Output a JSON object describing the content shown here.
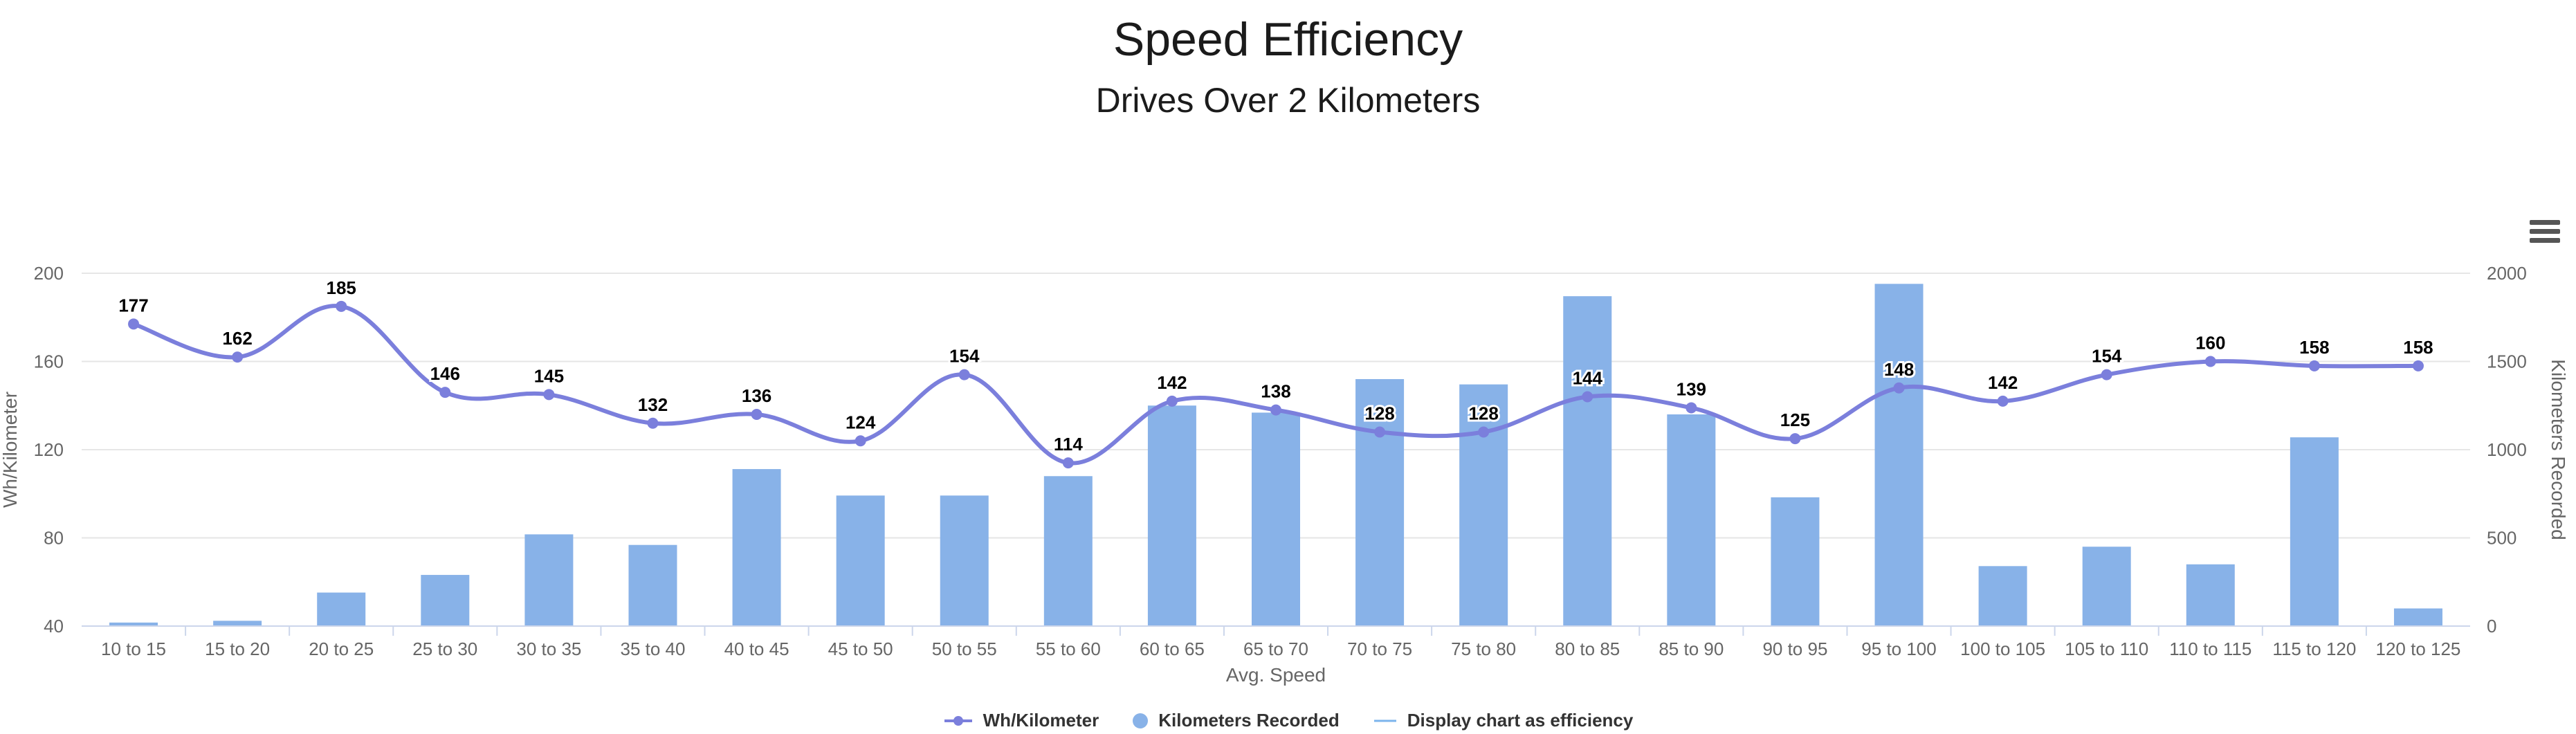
{
  "header": {
    "title": "Speed Efficiency",
    "subtitle": "Drives Over 2 Kilometers"
  },
  "legend": {
    "line_label": "Wh/Kilometer",
    "bar_label": "Kilometers Recorded",
    "toggle_label": "Display chart as efficiency"
  },
  "colors": {
    "line": "#7b7fdc",
    "bar": "#88b2e8",
    "grid": "#e6e6e6",
    "axis_text": "#666666"
  },
  "chart_data": {
    "type": "bar",
    "title": "Speed Efficiency",
    "subtitle": "Drives Over 2 Kilometers",
    "xlabel": "Avg. Speed",
    "categories": [
      "10 to 15",
      "15 to 20",
      "20 to 25",
      "25 to 30",
      "30 to 35",
      "35 to 40",
      "40 to 45",
      "45 to 50",
      "50 to 55",
      "55 to 60",
      "60 to 65",
      "65 to 70",
      "70 to 75",
      "75 to 80",
      "80 to 85",
      "85 to 90",
      "90 to 95",
      "95 to 100",
      "100 to 105",
      "105 to 110",
      "110 to 115",
      "115 to 120",
      "120 to 125"
    ],
    "y_left": {
      "label": "Wh/Kilometer",
      "ticks": [
        40,
        80,
        120,
        160,
        200
      ],
      "range": [
        40,
        200
      ]
    },
    "y_right": {
      "label": "Kilometers Recorded",
      "ticks": [
        0,
        500,
        1000,
        1500,
        2000
      ],
      "range": [
        0,
        2000
      ]
    },
    "grid": true,
    "legend_position": "bottom",
    "series": [
      {
        "name": "Wh/Kilometer",
        "type": "line",
        "axis": "left",
        "values": [
          177,
          162,
          185,
          146,
          145,
          132,
          136,
          124,
          154,
          114,
          142,
          138,
          128,
          128,
          144,
          139,
          125,
          148,
          142,
          154,
          160,
          158,
          158
        ],
        "labels": [
          "177",
          "162",
          "185",
          "146",
          "145",
          "132",
          "136",
          "124",
          "154",
          "114",
          "142",
          "138",
          "128",
          "128",
          "144",
          "139",
          "125",
          "148",
          "142",
          "154",
          "160",
          "158",
          "158"
        ]
      },
      {
        "name": "Kilometers Recorded",
        "type": "bar",
        "axis": "right",
        "values": [
          20,
          30,
          190,
          290,
          520,
          460,
          890,
          740,
          740,
          850,
          1250,
          1210,
          1400,
          1370,
          1870,
          1200,
          730,
          1940,
          340,
          450,
          350,
          1070,
          100
        ]
      }
    ]
  }
}
